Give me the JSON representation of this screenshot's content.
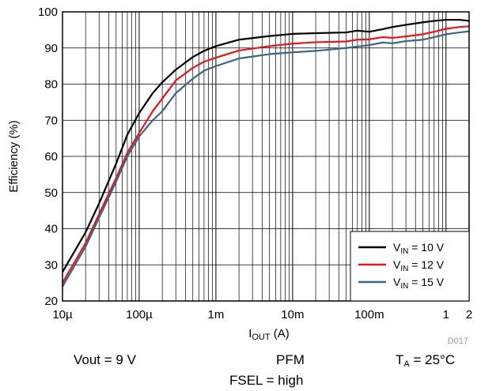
{
  "chart_data": {
    "type": "line",
    "xscale": "log",
    "xlim": [
      1e-05,
      2
    ],
    "ylim": [
      20,
      100
    ],
    "xticks": [
      {
        "value": 1e-05,
        "label": "10µ"
      },
      {
        "value": 0.0001,
        "label": "100µ"
      },
      {
        "value": 0.001,
        "label": "1m"
      },
      {
        "value": 0.01,
        "label": "10m"
      },
      {
        "value": 0.1,
        "label": "100m"
      },
      {
        "value": 1,
        "label": "1"
      },
      {
        "value": 2,
        "label": "2"
      }
    ],
    "yticks": [
      20,
      30,
      40,
      50,
      60,
      70,
      80,
      90,
      100
    ],
    "xlabel": {
      "main": "I",
      "sub": "OUT",
      "rest": " (A)"
    },
    "ylabel": "Efficiency (%)",
    "grid": true,
    "legend_position": "bottom-right",
    "figure_id": "D017",
    "series": [
      {
        "name_main": "V",
        "name_sub": "IN",
        "name_rest": " = 10 V",
        "color": "#000000",
        "x": [
          1e-05,
          2e-05,
          3e-05,
          5e-05,
          7e-05,
          0.0001,
          0.00015,
          0.0002,
          0.0003,
          0.0005,
          0.0007,
          0.001,
          0.002,
          0.005,
          0.01,
          0.02,
          0.05,
          0.07,
          0.1,
          0.15,
          0.2,
          0.3,
          0.5,
          0.7,
          1,
          1.5,
          2
        ],
        "y": [
          28,
          39,
          47,
          58,
          66,
          72,
          77.5,
          80.5,
          84,
          87.5,
          89.2,
          90.5,
          92.3,
          93.3,
          93.9,
          94.1,
          94.3,
          94.8,
          94.5,
          95.2,
          95.8,
          96.4,
          97.1,
          97.5,
          97.8,
          97.8,
          97.5
        ]
      },
      {
        "name_main": "V",
        "name_sub": "IN",
        "name_rest": " = 12 V",
        "color": "#e8141e",
        "x": [
          1e-05,
          2e-05,
          3e-05,
          5e-05,
          7e-05,
          0.0001,
          0.00015,
          0.0002,
          0.0003,
          0.0005,
          0.0007,
          0.001,
          0.002,
          0.005,
          0.01,
          0.02,
          0.05,
          0.07,
          0.1,
          0.15,
          0.2,
          0.3,
          0.5,
          0.7,
          1,
          1.5,
          2
        ],
        "y": [
          25,
          36,
          44,
          54,
          61,
          66.5,
          72.5,
          76,
          81,
          84.5,
          86.2,
          87.3,
          89.3,
          90.5,
          91.2,
          91.6,
          91.8,
          92.3,
          92.4,
          93,
          92.8,
          93.2,
          93.8,
          94.5,
          95.3,
          95.8,
          96
        ]
      },
      {
        "name_main": "V",
        "name_sub": "IN",
        "name_rest": " = 15 V",
        "color": "#3d6582",
        "x": [
          1e-05,
          2e-05,
          3e-05,
          5e-05,
          7e-05,
          0.0001,
          0.00015,
          0.0002,
          0.0003,
          0.0005,
          0.0007,
          0.001,
          0.002,
          0.005,
          0.01,
          0.02,
          0.05,
          0.07,
          0.1,
          0.15,
          0.2,
          0.3,
          0.5,
          0.7,
          1,
          1.5,
          2
        ],
        "y": [
          24,
          35,
          43,
          53,
          60,
          65.5,
          70,
          72.5,
          77.5,
          81.5,
          83.7,
          85,
          87.1,
          88.3,
          88.8,
          89.2,
          90,
          90.4,
          90.8,
          91.5,
          91.3,
          91.9,
          92.3,
          93,
          93.8,
          94.3,
          94.6
        ]
      }
    ]
  },
  "conditions": {
    "vout": "Vout = 9 V",
    "mode": "PFM",
    "ta_main": "T",
    "ta_sub": "A",
    "ta_rest": " = 25°C",
    "fsel": "FSEL = high"
  }
}
